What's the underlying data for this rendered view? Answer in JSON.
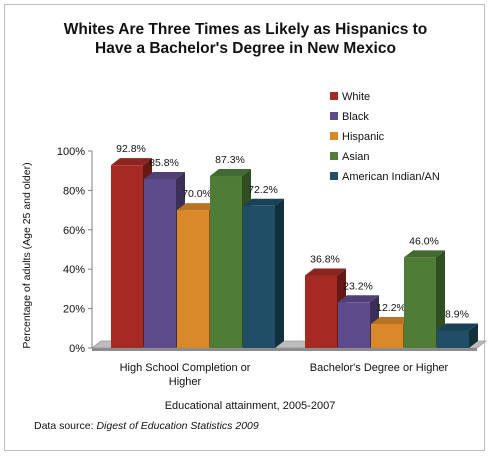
{
  "title_line1": "Whites Are Three Times as Likely as Hispanics to",
  "title_line2": "Have a Bachelor's Degree in New Mexico",
  "source_prefix": "Data source: ",
  "source_title": "Digest of Education Statistics 2009",
  "chart_data": {
    "type": "bar",
    "title": "Whites Are Three Times as Likely as Hispanics to Have a Bachelor's Degree in New Mexico",
    "xlabel": "Educational attainment, 2005-2007",
    "ylabel": "Percentage of adults (Age 25 and older)",
    "ylim": [
      0,
      100
    ],
    "yticks": [
      "0%",
      "20%",
      "40%",
      "60%",
      "80%",
      "100%"
    ],
    "categories": [
      [
        "High School Completion or",
        "Higher"
      ],
      [
        "Bachelor's Degree or Higher"
      ]
    ],
    "legend_position": "right",
    "series": [
      {
        "name": "White",
        "color": "#a52a24",
        "values": [
          92.8,
          36.8
        ],
        "labels": [
          "92.8%",
          "36.8%"
        ]
      },
      {
        "name": "Black",
        "color": "#5e4b8b",
        "values": [
          85.8,
          23.2
        ],
        "labels": [
          "85.8%",
          "23.2%"
        ]
      },
      {
        "name": "Hispanic",
        "color": "#d9882a",
        "values": [
          70.0,
          12.2
        ],
        "labels": [
          "70.0%",
          "12.2%"
        ]
      },
      {
        "name": "Asian",
        "color": "#4f7d38",
        "values": [
          87.3,
          46.0
        ],
        "labels": [
          "87.3%",
          "46.0%"
        ]
      },
      {
        "name": "American Indian/AN",
        "color": "#1f4e66",
        "values": [
          72.2,
          8.9
        ],
        "labels": [
          "72.2%",
          "8.9%"
        ]
      }
    ]
  }
}
